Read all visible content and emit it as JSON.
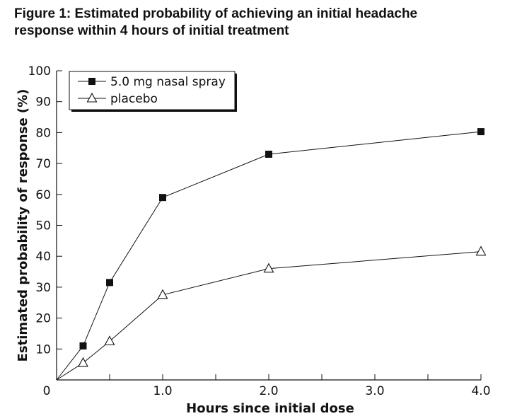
{
  "chart_data": {
    "type": "line",
    "title_line1": "Figure 1: Estimated probability of achieving an initial headache",
    "title_line2": "response within 4 hours of initial treatment",
    "xlabel": "Hours since initial dose",
    "ylabel": "Estimated probability of response (%)",
    "xlim": [
      0,
      4.0
    ],
    "ylim": [
      0,
      100
    ],
    "x_ticks": [
      0,
      0.5,
      1.0,
      1.5,
      2.0,
      2.5,
      3.0,
      3.5,
      4.0
    ],
    "x_tick_labels": [
      {
        "value": 0,
        "label": "0"
      },
      {
        "value": 1.0,
        "label": "1.0"
      },
      {
        "value": 2.0,
        "label": "2.0"
      },
      {
        "value": 3.0,
        "label": "3.0"
      },
      {
        "value": 4.0,
        "label": "4.0"
      }
    ],
    "y_ticks": [
      10,
      20,
      30,
      40,
      50,
      60,
      70,
      80,
      90,
      100
    ],
    "y_tick_labels": [
      "10",
      "20",
      "30",
      "40",
      "50",
      "60",
      "70",
      "80",
      "90",
      "100"
    ],
    "grid": false,
    "legend_position": "top-left",
    "series": [
      {
        "name": "5.0 mg nasal spray",
        "marker": "filled-square",
        "color": "#111111",
        "points": [
          [
            0,
            0
          ],
          [
            0.25,
            11
          ],
          [
            0.5,
            31.5
          ],
          [
            1.0,
            59
          ],
          [
            2.0,
            73
          ],
          [
            4.0,
            80.3
          ]
        ]
      },
      {
        "name": "placebo",
        "marker": "open-triangle",
        "color": "#111111",
        "points": [
          [
            0,
            0
          ],
          [
            0.25,
            5.5
          ],
          [
            0.5,
            12.5
          ],
          [
            1.0,
            27.5
          ],
          [
            2.0,
            36
          ],
          [
            4.0,
            41.5
          ]
        ]
      }
    ]
  }
}
